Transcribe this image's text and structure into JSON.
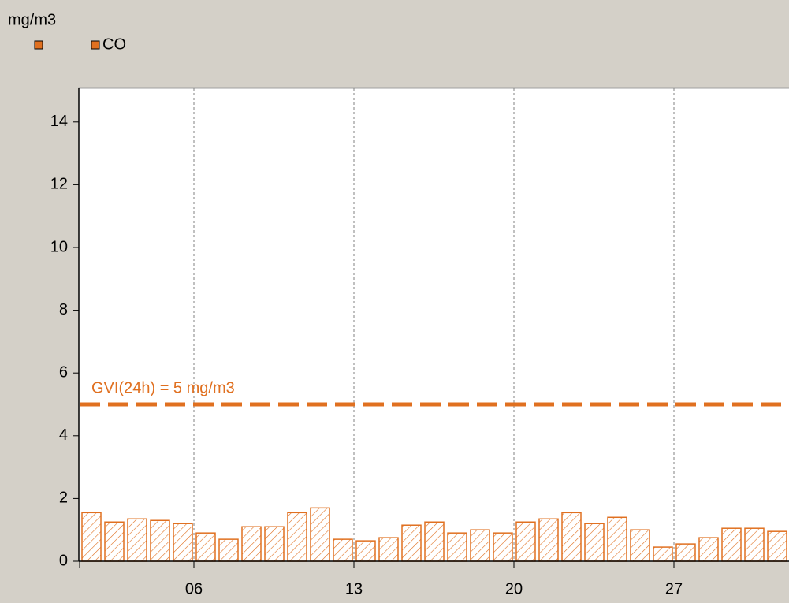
{
  "chart_data": {
    "type": "bar",
    "y_axis_label": "mg/m3",
    "x": [
      1,
      2,
      3,
      4,
      5,
      6,
      7,
      8,
      9,
      10,
      11,
      12,
      13,
      14,
      15,
      16,
      17,
      18,
      19,
      20,
      21,
      22,
      23,
      24,
      25,
      26,
      27,
      28,
      29,
      30,
      31
    ],
    "series": [
      {
        "name": "CO",
        "color": "#e07020",
        "values": [
          1.55,
          1.25,
          1.35,
          1.3,
          1.2,
          0.9,
          0.7,
          1.1,
          1.1,
          1.55,
          1.7,
          0.7,
          0.65,
          0.75,
          1.15,
          1.25,
          0.9,
          1.0,
          0.9,
          1.25,
          1.35,
          1.55,
          1.2,
          1.4,
          1.0,
          0.45,
          0.55,
          0.75,
          1.05,
          1.05,
          0.95
        ]
      }
    ],
    "xlim": [
      1,
      32
    ],
    "xticks": [
      {
        "value": 6,
        "label": "06"
      },
      {
        "value": 13,
        "label": "13"
      },
      {
        "value": 20,
        "label": "20"
      },
      {
        "value": 27,
        "label": "27"
      }
    ],
    "ylim": [
      0,
      15
    ],
    "yticks": [
      0,
      2,
      4,
      6,
      8,
      10,
      12,
      14
    ],
    "threshold": {
      "value": 5,
      "label": "GVI(24h) = 5 mg/m3",
      "color": "#e07020"
    },
    "grid": true
  }
}
